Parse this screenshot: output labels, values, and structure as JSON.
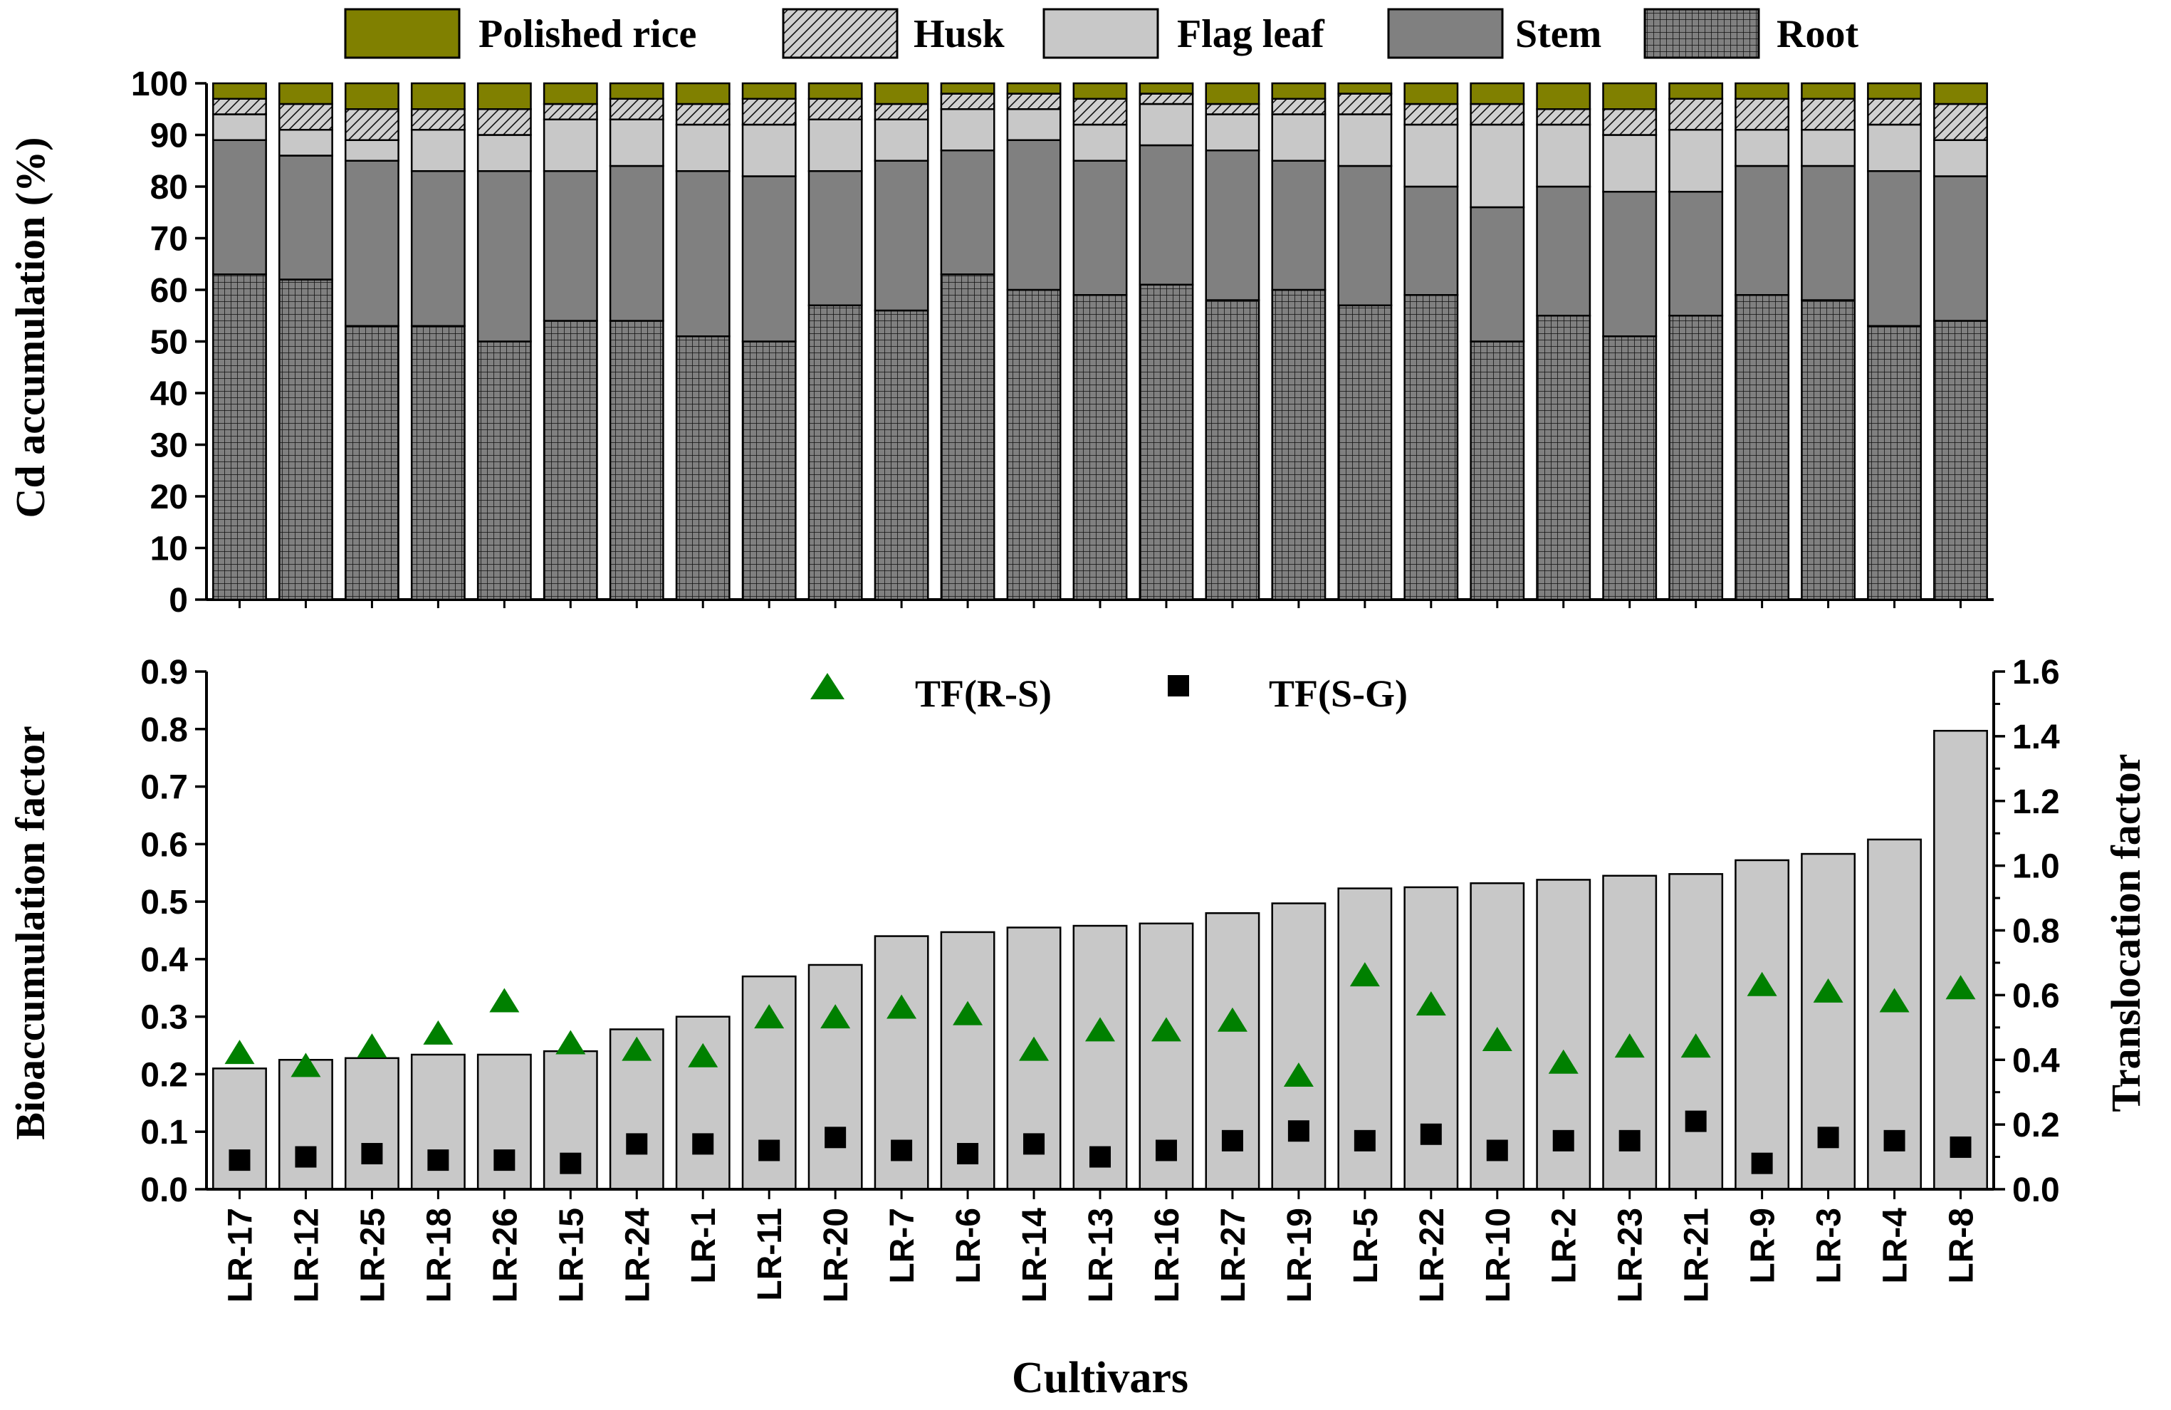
{
  "chart_data": [
    {
      "type": "bar",
      "stacked": true,
      "ylabel": "Cd accumulation (%)",
      "ylim": [
        0,
        100
      ],
      "yticks": [
        0,
        10,
        20,
        30,
        40,
        50,
        60,
        70,
        80,
        90,
        100
      ],
      "categories": [
        "LR-17",
        "LR-12",
        "LR-25",
        "LR-18",
        "LR-26",
        "LR-15",
        "LR-24",
        "LR-1",
        "LR-11",
        "LR-20",
        "LR-7",
        "LR-6",
        "LR-14",
        "LR-13",
        "LR-16",
        "LR-27",
        "LR-19",
        "LR-5",
        "LR-22",
        "LR-10",
        "LR-2",
        "LR-23",
        "LR-21",
        "LR-9",
        "LR-3",
        "LR-4",
        "LR-8"
      ],
      "legend_position": "top",
      "series": [
        {
          "name": "Root",
          "color": "#808080",
          "pattern": "grid",
          "values": [
            63,
            62,
            53,
            53,
            50,
            54,
            54,
            51,
            50,
            57,
            56,
            63,
            60,
            59,
            61,
            58,
            60,
            57,
            59,
            50,
            55,
            51,
            55,
            59,
            58,
            53,
            54
          ]
        },
        {
          "name": "Stem",
          "color": "#808080",
          "pattern": "solid",
          "values": [
            26,
            24,
            32,
            30,
            33,
            29,
            30,
            32,
            32,
            26,
            29,
            24,
            29,
            26,
            27,
            29,
            25,
            27,
            21,
            26,
            25,
            28,
            24,
            25,
            26,
            30,
            28
          ]
        },
        {
          "name": "Flag leaf",
          "color": "#c8c8c8",
          "pattern": "solid",
          "values": [
            5,
            5,
            4,
            8,
            7,
            10,
            9,
            9,
            10,
            10,
            8,
            8,
            6,
            7,
            8,
            7,
            9,
            10,
            12,
            16,
            12,
            11,
            12,
            7,
            7,
            9,
            7
          ]
        },
        {
          "name": "Husk",
          "color": "#c8c8c8",
          "pattern": "hatch",
          "values": [
            3,
            5,
            6,
            4,
            5,
            3,
            4,
            4,
            5,
            4,
            3,
            3,
            3,
            5,
            2,
            2,
            3,
            4,
            4,
            4,
            3,
            5,
            6,
            6,
            6,
            5,
            7
          ]
        },
        {
          "name": "Polished rice",
          "color": "#808000",
          "pattern": "solid",
          "values": [
            3,
            4,
            5,
            5,
            5,
            4,
            3,
            4,
            3,
            3,
            4,
            2,
            2,
            3,
            2,
            4,
            3,
            2,
            4,
            4,
            5,
            5,
            3,
            3,
            3,
            3,
            4
          ]
        }
      ]
    },
    {
      "type": "bar",
      "xlabel": "Cultivars",
      "ylabel": "Bioaccumulation factor",
      "ylabel_right": "Translocation factor",
      "ylim": [
        0,
        0.9
      ],
      "ylim_right": [
        0,
        1.6
      ],
      "yticks": [
        "0.0",
        "0.1",
        "0.2",
        "0.3",
        "0.4",
        "0.5",
        "0.6",
        "0.7",
        "0.8",
        "0.9"
      ],
      "yticks_right": [
        "0.0",
        "0.2",
        "0.4",
        "0.6",
        "0.8",
        "1.0",
        "1.2",
        "1.4",
        "1.6"
      ],
      "categories": [
        "LR-17",
        "LR-12",
        "LR-25",
        "LR-18",
        "LR-26",
        "LR-15",
        "LR-24",
        "LR-1",
        "LR-11",
        "LR-20",
        "LR-7",
        "LR-6",
        "LR-14",
        "LR-13",
        "LR-16",
        "LR-27",
        "LR-19",
        "LR-5",
        "LR-22",
        "LR-10",
        "LR-2",
        "LR-23",
        "LR-21",
        "LR-9",
        "LR-3",
        "LR-4",
        "LR-8"
      ],
      "bar_color": "#c8c8c8",
      "values": [
        0.21,
        0.225,
        0.228,
        0.234,
        0.234,
        0.24,
        0.278,
        0.3,
        0.37,
        0.39,
        0.44,
        0.447,
        0.455,
        0.458,
        0.462,
        0.48,
        0.497,
        0.523,
        0.525,
        0.532,
        0.538,
        0.545,
        0.548,
        0.572,
        0.583,
        0.608,
        0.797
      ],
      "legend_position": "top-center",
      "series": [
        {
          "name": "TF(R-S)",
          "marker": "triangle",
          "color": "#008000",
          "axis": "right",
          "values": [
            0.42,
            0.38,
            0.44,
            0.48,
            0.58,
            0.45,
            0.43,
            0.41,
            0.53,
            0.53,
            0.56,
            0.54,
            0.43,
            0.49,
            0.49,
            0.52,
            0.35,
            0.66,
            0.57,
            0.46,
            0.39,
            0.44,
            0.44,
            0.63,
            0.61,
            0.58,
            0.62
          ]
        },
        {
          "name": "TF(S-G)",
          "marker": "square",
          "color": "#000000",
          "axis": "right",
          "values": [
            0.09,
            0.1,
            0.11,
            0.09,
            0.09,
            0.08,
            0.14,
            0.14,
            0.12,
            0.16,
            0.12,
            0.11,
            0.14,
            0.1,
            0.12,
            0.15,
            0.18,
            0.15,
            0.17,
            0.12,
            0.15,
            0.15,
            0.21,
            0.08,
            0.16,
            0.15,
            0.13
          ]
        }
      ]
    }
  ]
}
